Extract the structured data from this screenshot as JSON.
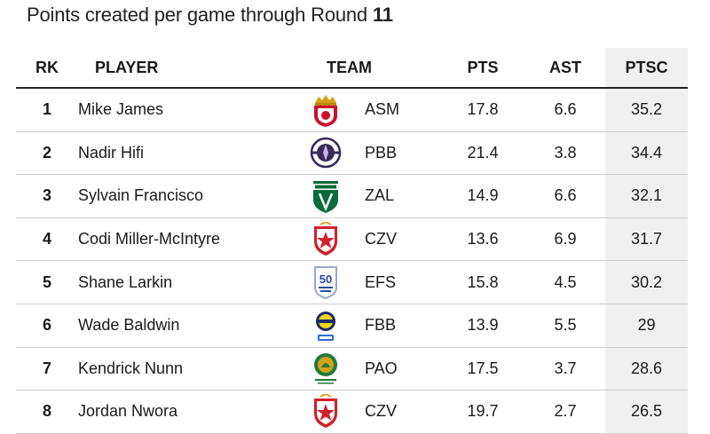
{
  "title": {
    "prefix": "Points created per game through Round",
    "round": "11"
  },
  "headers": {
    "rk": "RK",
    "player": "PLAYER",
    "team": "TEAM",
    "pts": "PTS",
    "ast": "AST",
    "ptsc": "PTSC"
  },
  "rows": [
    {
      "rk": "1",
      "player": "Mike James",
      "team": "ASM",
      "pts": "17.8",
      "ast": "6.6",
      "ptsc": "35.2",
      "logo_icon": "monaco-logo-icon",
      "logo_color": "#c8102e"
    },
    {
      "rk": "2",
      "player": "Nadir Hifi",
      "team": "PBB",
      "pts": "21.4",
      "ast": "3.8",
      "ptsc": "34.4",
      "logo_icon": "paris-logo-icon",
      "logo_color": "#3a2a5a"
    },
    {
      "rk": "3",
      "player": "Sylvain Francisco",
      "team": "ZAL",
      "pts": "14.9",
      "ast": "6.6",
      "ptsc": "32.1",
      "logo_icon": "zalgiris-logo-icon",
      "logo_color": "#0b6b3a"
    },
    {
      "rk": "4",
      "player": "Codi Miller-McIntyre",
      "team": "CZV",
      "pts": "13.6",
      "ast": "6.9",
      "ptsc": "31.7",
      "logo_icon": "crvena-zvezda-logo-icon",
      "logo_color": "#d0202e"
    },
    {
      "rk": "5",
      "player": "Shane Larkin",
      "team": "EFS",
      "pts": "15.8",
      "ast": "4.5",
      "ptsc": "30.2",
      "logo_icon": "efes-logo-icon",
      "logo_color": "#2b4a9a"
    },
    {
      "rk": "6",
      "player": "Wade Baldwin",
      "team": "FBB",
      "pts": "13.9",
      "ast": "5.5",
      "ptsc": "29",
      "logo_icon": "fenerbahce-logo-icon",
      "logo_color": "#1b2a6b"
    },
    {
      "rk": "7",
      "player": "Kendrick Nunn",
      "team": "PAO",
      "pts": "17.5",
      "ast": "3.7",
      "ptsc": "28.6",
      "logo_icon": "panathinaikos-logo-icon",
      "logo_color": "#1f7a3a"
    },
    {
      "rk": "8",
      "player": "Jordan Nwora",
      "team": "CZV",
      "pts": "19.7",
      "ast": "2.7",
      "ptsc": "26.5",
      "logo_icon": "crvena-zvezda-logo-icon",
      "logo_color": "#d0202e"
    }
  ],
  "chart_data": {
    "type": "table",
    "title": "Points created per game through Round 11",
    "columns": [
      "RK",
      "PLAYER",
      "TEAM",
      "PTS",
      "AST",
      "PTSC"
    ],
    "rows": [
      [
        1,
        "Mike James",
        "ASM",
        17.8,
        6.6,
        35.2
      ],
      [
        2,
        "Nadir Hifi",
        "PBB",
        21.4,
        3.8,
        34.4
      ],
      [
        3,
        "Sylvain Francisco",
        "ZAL",
        14.9,
        6.6,
        32.1
      ],
      [
        4,
        "Codi Miller-McIntyre",
        "CZV",
        13.6,
        6.9,
        31.7
      ],
      [
        5,
        "Shane Larkin",
        "EFS",
        15.8,
        4.5,
        30.2
      ],
      [
        6,
        "Wade Baldwin",
        "FBB",
        13.9,
        5.5,
        29
      ],
      [
        7,
        "Kendrick Nunn",
        "PAO",
        17.5,
        3.7,
        28.6
      ],
      [
        8,
        "Jordan Nwora",
        "CZV",
        19.7,
        2.7,
        26.5
      ]
    ],
    "highlight_column": "PTSC",
    "highlight_color": "#f0f0f0"
  }
}
